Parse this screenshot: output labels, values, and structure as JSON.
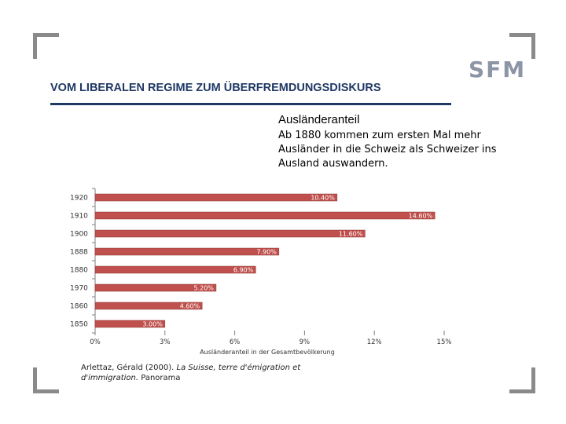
{
  "header": {
    "title": "VOM LIBERALEN REGIME ZUM ÜBERFREMDUNGSDISKURS",
    "logo_text": "SFM"
  },
  "chart_data": {
    "type": "bar",
    "orientation": "horizontal",
    "title": "Ausländeranteil",
    "subtitle": "Ab 1880 kommen zum ersten Mal mehr Ausländer in die Schweiz als Schweizer ins Ausland auswandern.",
    "xlabel": "Ausländeranteil in der Gesamtbevölkerung",
    "ylabel": "",
    "categories": [
      "1920",
      "1910",
      "1900",
      "1888",
      "1880",
      "1970",
      "1860",
      "1850"
    ],
    "values": [
      10.4,
      14.6,
      11.6,
      7.9,
      6.9,
      5.2,
      4.6,
      3.0
    ],
    "data_labels": [
      "10.40%",
      "14.60%",
      "11.60%",
      "7.90%",
      "6.90%",
      "5.20%",
      "4.60%",
      "3.00%"
    ],
    "xticks": [
      "0%",
      "3%",
      "6%",
      "9%",
      "12%",
      "15%"
    ],
    "xtick_values": [
      0,
      3,
      6,
      9,
      12,
      15
    ],
    "xlim": [
      0,
      15
    ],
    "grid": false,
    "legend": "none",
    "bar_color": "#c0504d",
    "label_color": "#ffffff"
  },
  "source": {
    "author": "Arlettaz, Gérald (2000).",
    "work_title": "La Suisse, terre d'émigration et d'immigration.",
    "publisher": "Panorama"
  },
  "colors": {
    "header_text": "#1f3864",
    "corner_brackets": "#8a8a8a",
    "logo": "#8c95a6"
  }
}
